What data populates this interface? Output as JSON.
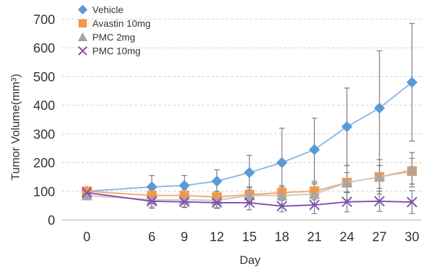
{
  "chart_data": {
    "type": "line",
    "xlabel": "Day",
    "ylabel": "Tumor Volume(mm³)",
    "x": [
      0,
      6,
      9,
      12,
      15,
      18,
      21,
      24,
      27,
      30
    ],
    "ylim": [
      0,
      700
    ],
    "yticks": [
      0,
      100,
      200,
      300,
      400,
      500,
      600,
      700
    ],
    "grid": true,
    "legend_position": "top-left",
    "series": [
      {
        "name": "Vehicle",
        "marker": "diamond",
        "color": "#5b9bd5",
        "line_color": "#8cb8e6",
        "values": [
          100,
          115,
          120,
          135,
          165,
          200,
          245,
          325,
          390,
          480
        ],
        "errors": [
          5,
          40,
          35,
          40,
          60,
          120,
          110,
          135,
          200,
          205
        ]
      },
      {
        "name": "Avastin 10mg",
        "marker": "square",
        "color": "#f79646",
        "line_color": "#f7a86a",
        "values": [
          100,
          85,
          85,
          80,
          88,
          95,
          100,
          130,
          150,
          170
        ],
        "errors": [
          5,
          20,
          20,
          20,
          25,
          25,
          30,
          35,
          40,
          45
        ]
      },
      {
        "name": "PMC 2mg",
        "marker": "triangle",
        "color": "#a6a6a6",
        "line_color": "#c8c8c8",
        "values": [
          85,
          70,
          70,
          68,
          85,
          85,
          90,
          130,
          150,
          175
        ],
        "errors": [
          8,
          25,
          25,
          25,
          30,
          30,
          35,
          60,
          60,
          60
        ]
      },
      {
        "name": "PMC 10mg",
        "marker": "x",
        "color": "#7f4fb3",
        "line_color": "#7f4fb3",
        "values": [
          95,
          65,
          63,
          60,
          60,
          48,
          52,
          63,
          65,
          62
        ],
        "errors": [
          8,
          25,
          20,
          20,
          25,
          20,
          30,
          35,
          35,
          40
        ]
      }
    ]
  }
}
